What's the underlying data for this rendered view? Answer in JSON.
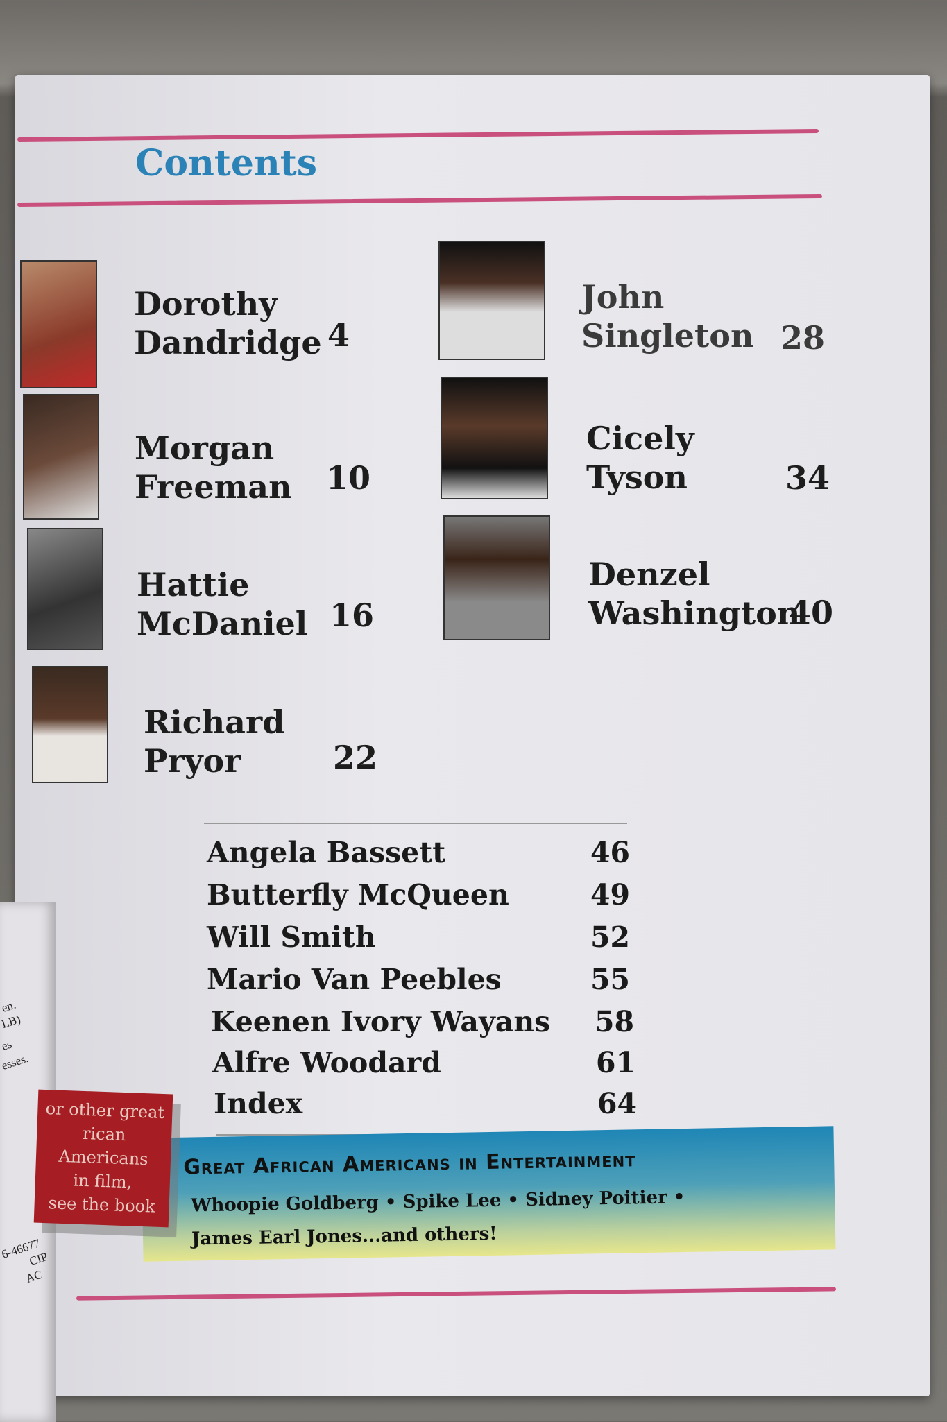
{
  "left_page": {
    "lines": [
      "en.",
      "LB)",
      "es",
      "esses.",
      "6-46677",
      "CIP",
      "AC"
    ]
  },
  "title": "Contents",
  "featured_left": [
    {
      "first": "Dorothy",
      "last": "Dandridge",
      "page": "4"
    },
    {
      "first": "Morgan",
      "last": "Freeman",
      "page": "10"
    },
    {
      "first": "Hattie",
      "last": "McDaniel",
      "page": "16"
    },
    {
      "first": "Richard",
      "last": "Pryor",
      "page": "22"
    }
  ],
  "featured_right": [
    {
      "first": "John",
      "last": "Singleton",
      "page": "28"
    },
    {
      "first": "Cicely",
      "last": "Tyson",
      "page": "34"
    },
    {
      "first": "Denzel",
      "last": "Washington",
      "page": "40"
    }
  ],
  "list": [
    {
      "name": "Angela Bassett",
      "page": "46"
    },
    {
      "name": "Butterfly McQueen",
      "page": "49"
    },
    {
      "name": "Will Smith",
      "page": "52"
    },
    {
      "name": "Mario Van Peebles",
      "page": "55"
    },
    {
      "name": "Keenen Ivory Wayans",
      "page": "58"
    },
    {
      "name": "Alfre Woodard",
      "page": "61"
    },
    {
      "name": "Index",
      "page": "64"
    }
  ],
  "promo": {
    "lines": [
      "or other great",
      "rican Americans",
      "in film,",
      "see the book"
    ]
  },
  "banner": {
    "title": "Great African Americans in Entertainment",
    "line1": "Whoopie Goldberg • Spike Lee • Sidney Poitier •",
    "line2": "James Earl Jones...and others!"
  },
  "colors": {
    "accent_rule": "#c94f7c",
    "title_blue": "#2b82b6",
    "promo_red": "#a61d23"
  }
}
